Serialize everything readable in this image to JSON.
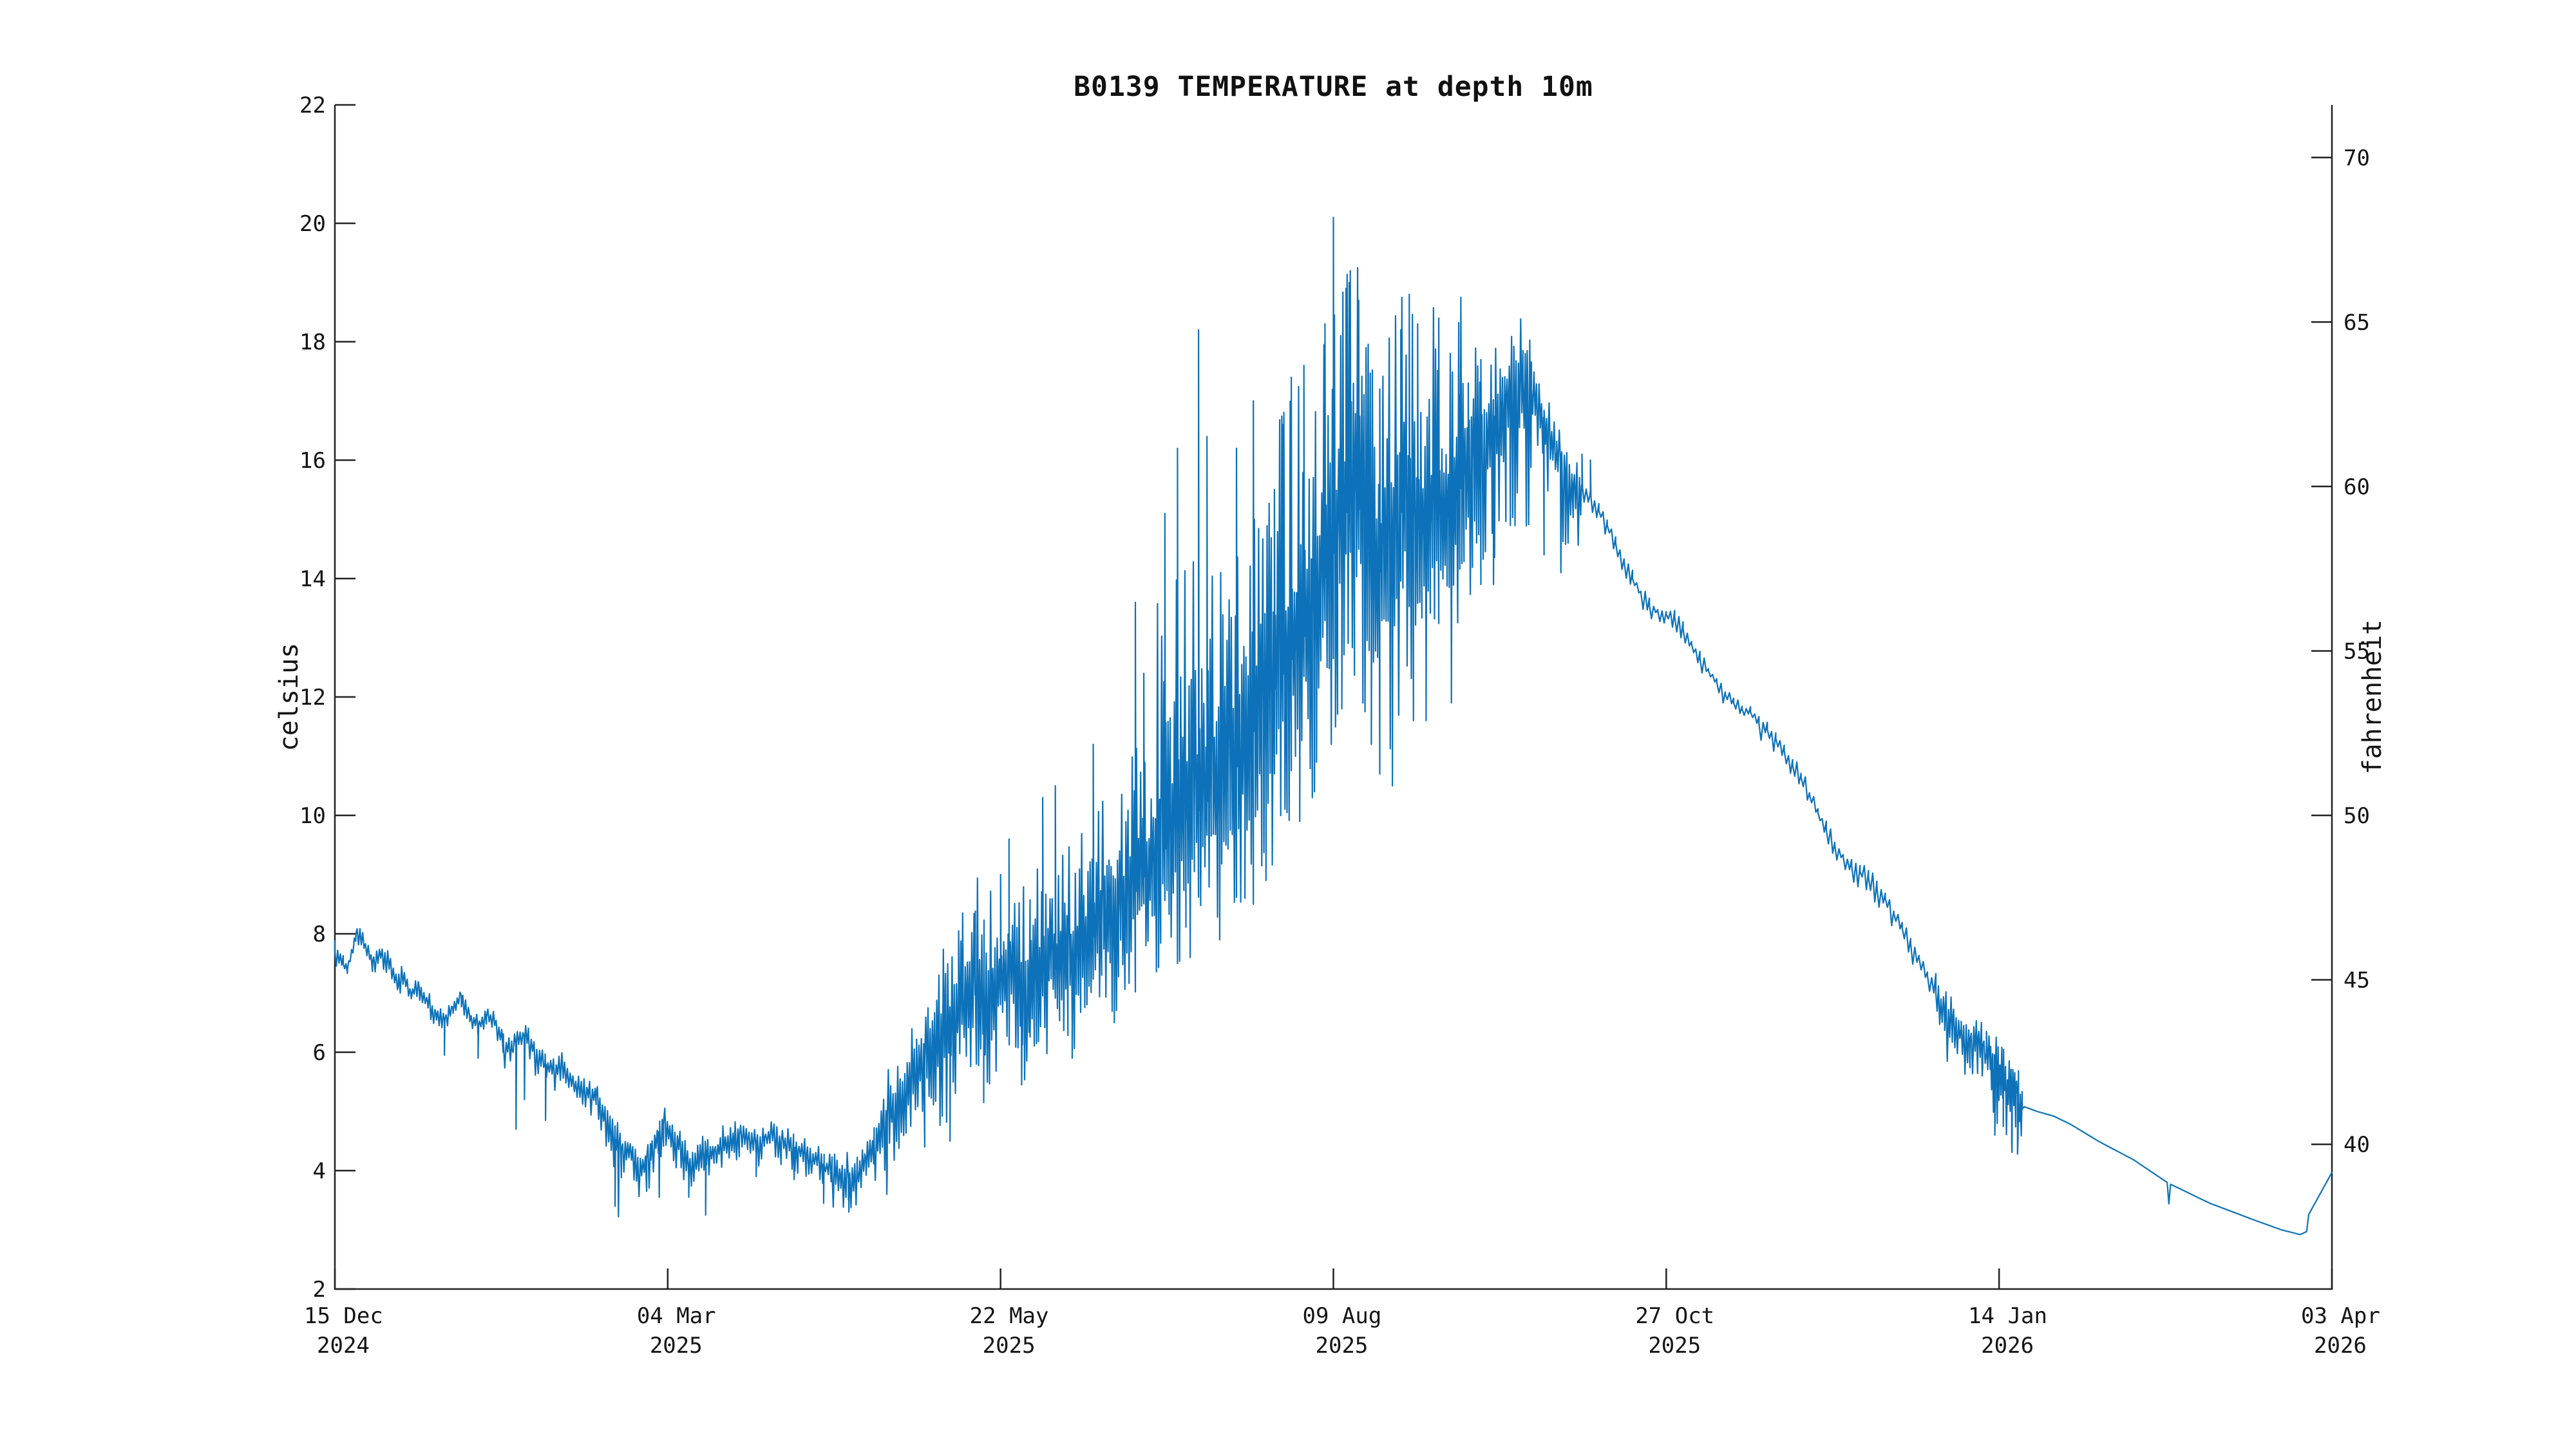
{
  "chart_data": {
    "type": "line",
    "title": "B0139 TEMPERATURE at depth 10m",
    "ylabel": "celsius",
    "ylabel_right": "fahrenheit",
    "series_name": "temperature at 10m depth",
    "series_color": "#0d72b9",
    "background_color": "#ffffff",
    "spine_color": "#222222",
    "text_color": "#141414",
    "ylim_celsius": [
      2,
      22
    ],
    "y_ticks_celsius": [
      2,
      4,
      6,
      8,
      10,
      12,
      14,
      16,
      18,
      20,
      22
    ],
    "y_ticks_fahrenheit": [
      40,
      45,
      50,
      55,
      60,
      65,
      70
    ],
    "x_range_days": 474,
    "x_tick_days": [
      0,
      79,
      158,
      237,
      316,
      395,
      474
    ],
    "x_tick_labels": [
      [
        "15 Dec",
        "2024"
      ],
      [
        "04 Mar",
        "2025"
      ],
      [
        "22 May",
        "2025"
      ],
      [
        "09 Aug",
        "2025"
      ],
      [
        "27 Oct",
        "2025"
      ],
      [
        "14 Jan",
        "2026"
      ],
      [
        "03 Apr",
        "2026"
      ]
    ],
    "grid": "off",
    "legend": "none",
    "noise_seed": 7,
    "base_points_day_celsius": [
      [
        0,
        7.7
      ],
      [
        2,
        7.5
      ],
      [
        3,
        7.4
      ],
      [
        5,
        8.0
      ],
      [
        7,
        7.8
      ],
      [
        9,
        7.55
      ],
      [
        11,
        7.65
      ],
      [
        13,
        7.5
      ],
      [
        15,
        7.1
      ],
      [
        16,
        7.3
      ],
      [
        18,
        7.0
      ],
      [
        20,
        7.1
      ],
      [
        22,
        6.85
      ],
      [
        24,
        6.65
      ],
      [
        26,
        6.55
      ],
      [
        28,
        6.75
      ],
      [
        30,
        6.95
      ],
      [
        32,
        6.6
      ],
      [
        34,
        6.45
      ],
      [
        36,
        6.6
      ],
      [
        38,
        6.5
      ],
      [
        40,
        6.15
      ],
      [
        42,
        6.05
      ],
      [
        44,
        6.3
      ],
      [
        46,
        6.25
      ],
      [
        48,
        5.95
      ],
      [
        50,
        5.8
      ],
      [
        52,
        5.7
      ],
      [
        54,
        5.85
      ],
      [
        56,
        5.55
      ],
      [
        58,
        5.4
      ],
      [
        60,
        5.35
      ],
      [
        62,
        5.25
      ],
      [
        64,
        4.95
      ],
      [
        66,
        4.6
      ],
      [
        68,
        4.35
      ],
      [
        70,
        4.4
      ],
      [
        72,
        3.95
      ],
      [
        74,
        4.2
      ],
      [
        76,
        4.55
      ],
      [
        78,
        4.8
      ],
      [
        80,
        4.65
      ],
      [
        82,
        4.45
      ],
      [
        84,
        4.05
      ],
      [
        86,
        4.15
      ],
      [
        88,
        4.35
      ],
      [
        90,
        4.3
      ],
      [
        92,
        4.45
      ],
      [
        94,
        4.55
      ],
      [
        96,
        4.6
      ],
      [
        98,
        4.5
      ],
      [
        100,
        4.45
      ],
      [
        102,
        4.55
      ],
      [
        104,
        4.6
      ],
      [
        106,
        4.5
      ],
      [
        108,
        4.45
      ],
      [
        110,
        4.35
      ],
      [
        112,
        4.3
      ],
      [
        114,
        4.2
      ],
      [
        116,
        4.1
      ],
      [
        118,
        4.0
      ],
      [
        120,
        3.9
      ],
      [
        122,
        3.85
      ],
      [
        124,
        4.0
      ],
      [
        126,
        4.2
      ],
      [
        128,
        4.45
      ],
      [
        130,
        4.7
      ],
      [
        132,
        5.0
      ],
      [
        134,
        5.2
      ],
      [
        136,
        5.5
      ],
      [
        138,
        5.7
      ],
      [
        140,
        5.9
      ],
      [
        142,
        6.1
      ],
      [
        144,
        6.2
      ],
      [
        146,
        6.4
      ],
      [
        148,
        6.7
      ],
      [
        150,
        7.1
      ],
      [
        152,
        7.3
      ],
      [
        154,
        7.0
      ],
      [
        156,
        6.9
      ],
      [
        158,
        7.2
      ],
      [
        160,
        7.4
      ],
      [
        162,
        7.1
      ],
      [
        164,
        6.95
      ],
      [
        166,
        7.1
      ],
      [
        168,
        7.35
      ],
      [
        170,
        7.6
      ],
      [
        172,
        7.25
      ],
      [
        174,
        7.45
      ],
      [
        176,
        7.6
      ],
      [
        178,
        7.75
      ],
      [
        180,
        7.95
      ],
      [
        182,
        8.15
      ],
      [
        184,
        8.05
      ],
      [
        186,
        8.25
      ],
      [
        188,
        8.45
      ],
      [
        190,
        8.7
      ],
      [
        192,
        8.95
      ],
      [
        194,
        9.15
      ],
      [
        196,
        9.35
      ],
      [
        198,
        9.5
      ],
      [
        200,
        9.7
      ],
      [
        202,
        9.85
      ],
      [
        204,
        10.0
      ],
      [
        206,
        10.15
      ],
      [
        208,
        10.3
      ],
      [
        210,
        10.45
      ],
      [
        212,
        10.6
      ],
      [
        214,
        10.8
      ],
      [
        216,
        11.1
      ],
      [
        218,
        11.4
      ],
      [
        220,
        11.7
      ],
      [
        222,
        12.0
      ],
      [
        224,
        12.25
      ],
      [
        226,
        12.5
      ],
      [
        228,
        12.75
      ],
      [
        230,
        13.0
      ],
      [
        232,
        13.4
      ],
      [
        234,
        13.8
      ],
      [
        236,
        14.2
      ],
      [
        238,
        14.6
      ],
      [
        240,
        15.1
      ],
      [
        242,
        15.4
      ],
      [
        244,
        15.0
      ],
      [
        246,
        14.4
      ],
      [
        248,
        14.1
      ],
      [
        250,
        14.4
      ],
      [
        252,
        14.9
      ],
      [
        254,
        15.3
      ],
      [
        256,
        15.0
      ],
      [
        258,
        14.7
      ],
      [
        260,
        14.9
      ],
      [
        262,
        15.1
      ],
      [
        264,
        15.0
      ],
      [
        266,
        15.3
      ],
      [
        268,
        15.7
      ],
      [
        270,
        16.0
      ],
      [
        272,
        16.3
      ],
      [
        274,
        16.6
      ],
      [
        276,
        16.85
      ],
      [
        278,
        17.05
      ],
      [
        280,
        17.2
      ],
      [
        282,
        17.35
      ],
      [
        284,
        17.2
      ],
      [
        286,
        16.9
      ],
      [
        288,
        16.5
      ],
      [
        290,
        16.15
      ],
      [
        292,
        15.85
      ],
      [
        294,
        15.6
      ],
      [
        296,
        15.55
      ],
      [
        298,
        15.4
      ],
      [
        300,
        15.15
      ],
      [
        302,
        14.9
      ],
      [
        304,
        14.6
      ],
      [
        306,
        14.3
      ],
      [
        308,
        14.0
      ],
      [
        310,
        13.75
      ],
      [
        312,
        13.55
      ],
      [
        314,
        13.45
      ],
      [
        316,
        13.4
      ],
      [
        318,
        13.35
      ],
      [
        320,
        13.15
      ],
      [
        322,
        12.9
      ],
      [
        324,
        12.65
      ],
      [
        326,
        12.45
      ],
      [
        328,
        12.25
      ],
      [
        330,
        12.05
      ],
      [
        332,
        11.9
      ],
      [
        334,
        11.8
      ],
      [
        336,
        11.75
      ],
      [
        338,
        11.55
      ],
      [
        340,
        11.45
      ],
      [
        342,
        11.3
      ],
      [
        344,
        11.1
      ],
      [
        346,
        10.85
      ],
      [
        348,
        10.65
      ],
      [
        350,
        10.35
      ],
      [
        352,
        10.05
      ],
      [
        354,
        9.75
      ],
      [
        356,
        9.5
      ],
      [
        358,
        9.3
      ],
      [
        360,
        9.15
      ],
      [
        362,
        9.05
      ],
      [
        364,
        8.95
      ],
      [
        366,
        8.8
      ],
      [
        368,
        8.6
      ],
      [
        370,
        8.35
      ],
      [
        372,
        8.1
      ],
      [
        374,
        7.85
      ],
      [
        376,
        7.6
      ],
      [
        378,
        7.3
      ],
      [
        380,
        7.0
      ],
      [
        382,
        6.7
      ],
      [
        384,
        6.55
      ],
      [
        386,
        6.4
      ],
      [
        388,
        6.2
      ],
      [
        390,
        6.25
      ],
      [
        392,
        6.0
      ],
      [
        394,
        5.75
      ],
      [
        395,
        5.6
      ],
      [
        396,
        5.65
      ],
      [
        397,
        5.4
      ],
      [
        398,
        5.3
      ],
      [
        399,
        5.45
      ],
      [
        400,
        5.0
      ],
      [
        401,
        5.08
      ],
      [
        404,
        5.0
      ],
      [
        408,
        4.92
      ],
      [
        412,
        4.78
      ],
      [
        419,
        4.48
      ],
      [
        427,
        4.18
      ],
      [
        434.9,
        3.8
      ],
      [
        435.3,
        3.44
      ],
      [
        435.7,
        3.77
      ],
      [
        445,
        3.45
      ],
      [
        455,
        3.18
      ],
      [
        462,
        3.0
      ],
      [
        466.5,
        2.92
      ],
      [
        468,
        2.97
      ],
      [
        468.5,
        3.26
      ],
      [
        474,
        3.97
      ]
    ],
    "spike_points_day_celsius": [
      [
        26,
        5.95
      ],
      [
        34,
        5.9
      ],
      [
        43,
        4.7
      ],
      [
        45,
        5.2
      ],
      [
        50,
        4.85
      ],
      [
        66.5,
        3.4
      ],
      [
        67.3,
        3.22
      ],
      [
        77,
        3.55
      ],
      [
        84,
        3.55
      ],
      [
        88,
        3.25
      ],
      [
        100,
        3.9
      ],
      [
        109,
        3.85
      ],
      [
        116,
        3.45
      ],
      [
        122,
        3.3
      ],
      [
        131,
        3.6
      ],
      [
        146,
        4.5
      ],
      [
        149,
        8.35
      ],
      [
        154,
        5.15
      ],
      [
        158,
        9.0
      ],
      [
        160,
        9.6
      ],
      [
        163,
        5.45
      ],
      [
        168,
        10.3
      ],
      [
        171,
        10.5
      ],
      [
        175,
        5.9
      ],
      [
        180,
        11.2
      ],
      [
        185,
        6.5
      ],
      [
        190,
        13.6
      ],
      [
        192,
        12.4
      ],
      [
        197,
        15.1
      ],
      [
        200,
        16.2
      ],
      [
        203,
        7.6
      ],
      [
        205,
        18.2
      ],
      [
        207,
        16.4
      ],
      [
        210,
        7.9
      ],
      [
        214,
        16.2
      ],
      [
        216,
        8.6
      ],
      [
        218,
        17.0
      ],
      [
        221,
        8.9
      ],
      [
        223,
        15.5
      ],
      [
        225,
        16.6
      ],
      [
        227,
        17.4
      ],
      [
        229,
        9.9
      ],
      [
        230,
        17.6
      ],
      [
        233,
        10.9
      ],
      [
        235,
        18.3
      ],
      [
        237,
        20.1
      ],
      [
        239,
        11.8
      ],
      [
        240,
        18.9
      ],
      [
        241,
        19.2
      ],
      [
        243,
        18.7
      ],
      [
        246,
        11.2
      ],
      [
        248,
        17.2
      ],
      [
        251,
        10.5
      ],
      [
        253,
        18.2
      ],
      [
        255,
        18.8
      ],
      [
        257,
        18.3
      ],
      [
        259,
        11.6
      ],
      [
        262,
        18.4
      ],
      [
        265,
        11.9
      ],
      [
        267,
        17.1
      ],
      [
        269,
        17.3
      ],
      [
        272,
        17.7
      ],
      [
        275,
        13.9
      ],
      [
        279,
        14.9
      ],
      [
        283,
        17.85
      ],
      [
        287,
        14.4
      ],
      [
        291,
        14.1
      ],
      [
        296,
        16.1
      ],
      [
        298,
        16.0
      ],
      [
        388,
        5.9
      ],
      [
        391,
        5.6
      ],
      [
        394,
        4.6
      ],
      [
        396,
        4.75
      ],
      [
        398,
        4.45
      ],
      [
        399.5,
        4.55
      ]
    ],
    "noise_segments": [
      [
        0,
        40,
        0.18,
        0.22,
        0.33
      ],
      [
        40,
        62,
        0.18,
        0.4,
        0.33
      ],
      [
        62,
        75,
        0.35,
        0.6,
        0.3
      ],
      [
        75,
        95,
        0.3,
        0.5,
        0.3
      ],
      [
        95,
        118,
        0.25,
        0.4,
        0.33
      ],
      [
        118,
        128,
        0.45,
        0.6,
        0.3
      ],
      [
        128,
        140,
        0.8,
        0.9,
        0.28
      ],
      [
        140,
        152,
        1.5,
        1.5,
        0.26
      ],
      [
        152,
        165,
        1.8,
        1.5,
        0.26
      ],
      [
        165,
        180,
        2.0,
        1.5,
        0.25
      ],
      [
        180,
        195,
        2.4,
        1.7,
        0.25
      ],
      [
        195,
        212,
        4.3,
        2.2,
        0.25
      ],
      [
        212,
        232,
        4.4,
        2.9,
        0.25
      ],
      [
        232,
        246,
        4.0,
        3.1,
        0.25
      ],
      [
        246,
        262,
        3.6,
        3.4,
        0.25
      ],
      [
        262,
        272,
        3.2,
        2.9,
        0.25
      ],
      [
        272,
        284,
        1.1,
        2.4,
        0.27
      ],
      [
        284,
        296,
        0.5,
        1.3,
        0.3
      ],
      [
        296,
        312,
        0.14,
        0.22,
        0.5
      ],
      [
        312,
        338,
        0.12,
        0.2,
        0.5
      ],
      [
        338,
        364,
        0.15,
        0.28,
        0.5
      ],
      [
        364,
        380,
        0.15,
        0.3,
        0.5
      ],
      [
        380,
        393,
        0.35,
        0.8,
        0.3
      ],
      [
        393,
        400.5,
        0.55,
        1.0,
        0.22
      ],
      [
        400.5,
        474,
        0,
        0,
        2
      ]
    ]
  }
}
